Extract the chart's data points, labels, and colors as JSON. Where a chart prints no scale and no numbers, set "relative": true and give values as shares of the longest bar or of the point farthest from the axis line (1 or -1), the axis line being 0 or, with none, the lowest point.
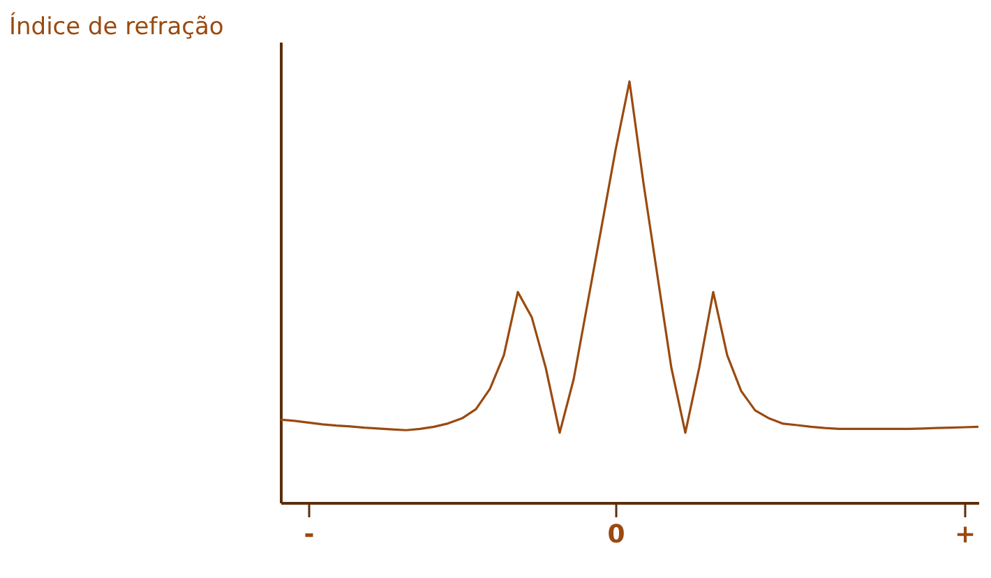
{
  "chart_data": {
    "type": "line",
    "ylabel": "Índice de refração",
    "relative": true,
    "tick_labels": "x",
    "grid": false,
    "legend": false,
    "marker": "none",
    "line_style": "solid",
    "categories": [
      null,
      null,
      "-",
      null,
      null,
      null,
      null,
      null,
      null,
      null,
      null,
      null,
      null,
      null,
      null,
      null,
      null,
      null,
      null,
      null,
      null,
      null,
      null,
      null,
      "0",
      null,
      null,
      null,
      null,
      null,
      null,
      null,
      null,
      null,
      null,
      null,
      null,
      null,
      null,
      null,
      null,
      null,
      null,
      null,
      null,
      null,
      null,
      null,
      null,
      "+",
      null
    ],
    "series": [
      {
        "color": "#9a4a10",
        "values": [
          0.197,
          0.194,
          0.19,
          0.186,
          0.183,
          0.181,
          0.178,
          0.176,
          0.174,
          0.172,
          0.175,
          0.18,
          0.188,
          0.2,
          0.222,
          0.27,
          0.35,
          0.5,
          0.44,
          0.32,
          0.166,
          0.293,
          0.474,
          0.655,
          0.837,
          1.0,
          0.759,
          0.539,
          0.32,
          0.166,
          0.321,
          0.5,
          0.35,
          0.265,
          0.219,
          0.2,
          0.1875,
          0.184,
          0.18,
          0.177,
          0.175,
          0.175,
          0.175,
          0.175,
          0.175,
          0.175,
          0.176,
          0.177,
          0.178,
          0.179,
          0.18
        ]
      }
    ]
  }
}
